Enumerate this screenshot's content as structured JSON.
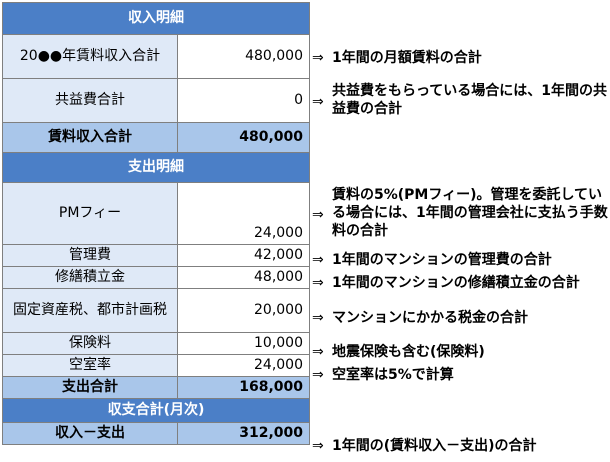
{
  "sections": {
    "income_title": "収入明細",
    "expense_title": "支出明細",
    "balance_title": "収支合計(月次)"
  },
  "income": [
    {
      "label": "20●●年賃料収入合計",
      "value": "480,000"
    },
    {
      "label": "共益費合計",
      "value": "0"
    }
  ],
  "income_total": {
    "label": "賃料収入合計",
    "value": "480,000"
  },
  "expenses": [
    {
      "label": "PMフィー",
      "value": "24,000"
    },
    {
      "label": "管理費",
      "value": "42,000"
    },
    {
      "label": "修繕積立金",
      "value": "48,000"
    },
    {
      "label": "固定資産税、都市計画税",
      "value": "20,000"
    },
    {
      "label": "保険料",
      "value": "10,000"
    },
    {
      "label": "空室率",
      "value": "24,000"
    }
  ],
  "expense_total": {
    "label": "支出合計",
    "value": "168,000"
  },
  "balance": {
    "label": "収入－支出",
    "value": "312,000"
  },
  "arrow": "⇒",
  "notes": {
    "rent": "1年間の月額賃料の合計",
    "common_fee": "共益費をもらっている場合には、1年間の共益費の合計",
    "pm_fee": "賃料の5%(PMフィー)。管理を委託している場合には、1年間の管理会社に支払う手数料の合計",
    "mgmt_fee": "1年間のマンションの管理費の合計",
    "repair_reserve": "1年間のマンションの修繕積立金の合計",
    "tax": "マンションにかかる税金の合計",
    "insurance": "地震保険も含む(保険料)",
    "vacancy": "空室率は5%で計算",
    "balance": "1年間の(賃料収入－支出)の合計"
  }
}
